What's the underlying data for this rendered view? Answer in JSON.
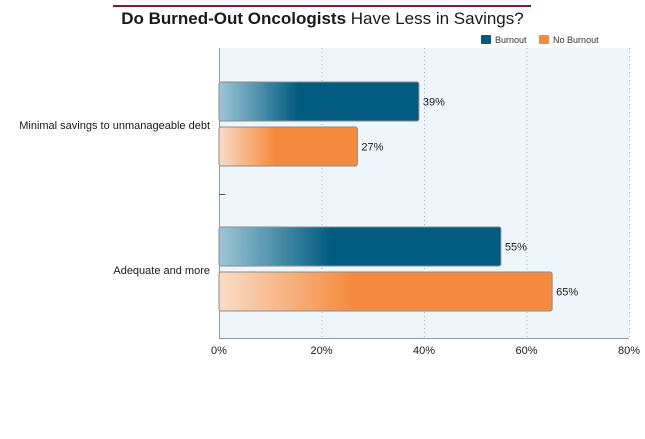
{
  "chart_data": {
    "type": "bar",
    "orientation": "horizontal",
    "title_bold": "Do Burned-Out Oncologists",
    "title_rest": "Have Less in Savings?",
    "categories": [
      "Minimal savings to unmanageable debt",
      "Adequate and more"
    ],
    "series": [
      {
        "name": "Burnout",
        "values": [
          39,
          55
        ],
        "labels": [
          "39%",
          "55%"
        ],
        "color": "#015a80",
        "light": "#9dc6d6"
      },
      {
        "name": "No Burnout",
        "values": [
          27,
          65
        ],
        "labels": [
          "27%",
          "65%"
        ],
        "color": "#f58a3e",
        "light": "#f8dcc6"
      }
    ],
    "xlim": [
      0,
      80
    ],
    "xticks": [
      0,
      20,
      40,
      60,
      80
    ],
    "xtick_labels": [
      "0%",
      "20%",
      "40%",
      "60%",
      "80%"
    ],
    "grid": "vertical dotted",
    "legend_position": "top-right",
    "plot_background": "#eef6fb"
  }
}
